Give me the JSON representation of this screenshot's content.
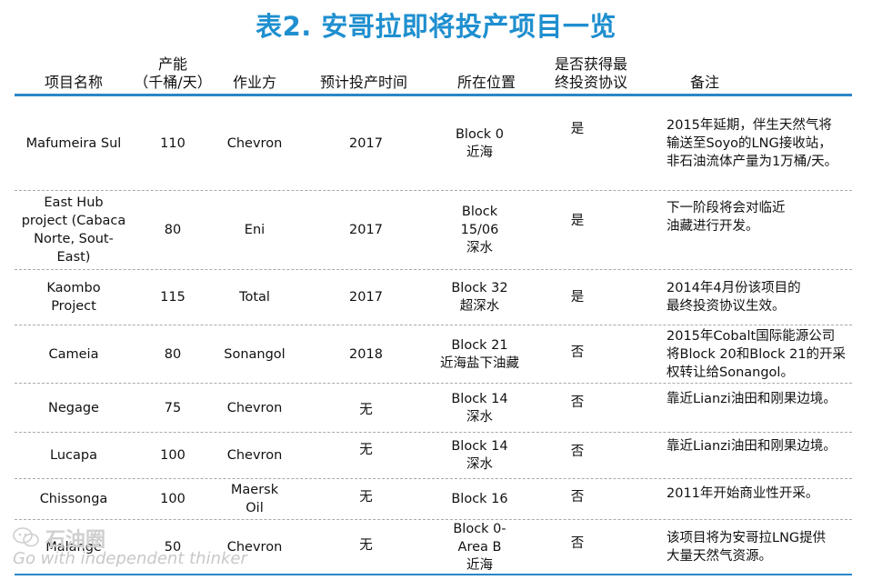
{
  "title": "表2. 安哥拉即将投产项目一览",
  "headers": {
    "name": "项目名称",
    "capacity_line1": "产能",
    "capacity_line2": "（千桶/天）",
    "operator": "作业方",
    "start_time": "预计投产时间",
    "location": "所在位置",
    "fid_line1": "是否获得最",
    "fid_line2": "终投资协议",
    "remarks": "备注"
  },
  "rows": [
    {
      "name": [
        "Mafumeira Sul"
      ],
      "capacity": "110",
      "operator": [
        "Chevron"
      ],
      "start": "2017",
      "location": [
        "Block 0",
        "近海"
      ],
      "fid": "是",
      "remarks": [
        "2015年延期，伴生天然气将",
        "输送至Soyo的LNG接收站，",
        "非石油流体产量为1万桶/天。"
      ]
    },
    {
      "name": [
        "East Hub",
        "project (Cabaca",
        "Norte, Sout-",
        "East)"
      ],
      "capacity": "80",
      "operator": [
        "Eni"
      ],
      "start": "2017",
      "location": [
        "Block",
        "15/06",
        "深水"
      ],
      "fid": "是",
      "remarks": [
        "下一阶段将会对临近",
        "油藏进行开发。"
      ]
    },
    {
      "name": [
        "Kaombo",
        "Project"
      ],
      "capacity": "115",
      "operator": [
        "Total"
      ],
      "start": "2017",
      "location": [
        "Block 32",
        "超深水"
      ],
      "fid": "是",
      "remarks": [
        "2014年4月份该项目的",
        "最终投资协议生效。"
      ]
    },
    {
      "name": [
        "Cameia"
      ],
      "capacity": "80",
      "operator": [
        "Sonangol"
      ],
      "start": "2018",
      "location": [
        "Block 21",
        "近海盐下油藏"
      ],
      "fid": "否",
      "remarks": [
        "2015年Cobalt国际能源公司",
        "将Block 20和Block 21的开采",
        "权转让给Sonangol。"
      ]
    },
    {
      "name": [
        "Negage"
      ],
      "capacity": "75",
      "operator": [
        "Chevron"
      ],
      "start": "无",
      "location": [
        "Block 14",
        "深水"
      ],
      "fid": "否",
      "remarks": [
        "靠近Lianzi油田和刚果边境。"
      ]
    },
    {
      "name": [
        "Lucapa"
      ],
      "capacity": "100",
      "operator": [
        "Chevron"
      ],
      "start": "无",
      "location": [
        "Block 14",
        "深水"
      ],
      "fid": "否",
      "remarks": [
        "靠近Lianzi油田和刚果边境。"
      ]
    },
    {
      "name": [
        "Chissonga"
      ],
      "capacity": "100",
      "operator": [
        "Maersk",
        "Oil"
      ],
      "start": "无",
      "location": [
        "Block 16"
      ],
      "fid": "否",
      "remarks": [
        "2011年开始商业性开采。"
      ]
    },
    {
      "name": [
        "Malange"
      ],
      "capacity": "50",
      "operator": [
        "Chevron"
      ],
      "start": "无",
      "location": [
        "Block 0-",
        "Area B",
        "近海"
      ],
      "fid": "否",
      "remarks": [
        "该项目将为安哥拉LNG提供",
        "大量天然气资源。"
      ]
    }
  ],
  "watermark": {
    "logo_text": "石油圈",
    "tagline": "Go with independent thinker",
    "icon": "wechat-icon"
  },
  "colors": {
    "title": "#1f8fcf",
    "rule": "#2b86c8",
    "dashed": "#a9a9a9"
  }
}
